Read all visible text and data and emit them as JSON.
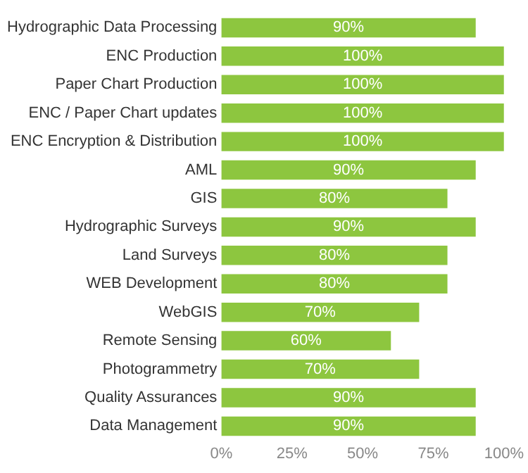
{
  "chart_data": {
    "type": "bar",
    "orientation": "horizontal",
    "categories": [
      "Hydrographic Data Processing",
      "ENC Production",
      "Paper Chart Production",
      "ENC / Paper Chart updates",
      "ENC Encryption & Distribution",
      "AML",
      "GIS",
      "Hydrographic Surveys",
      "Land Surveys",
      "WEB Development",
      "WebGIS",
      "Remote Sensing",
      "Photogrammetry",
      "Quality Assurances",
      "Data Management"
    ],
    "values": [
      90,
      100,
      100,
      100,
      100,
      90,
      80,
      90,
      80,
      80,
      70,
      60,
      70,
      90,
      90
    ],
    "value_labels": [
      "90%",
      "100%",
      "100%",
      "100%",
      "100%",
      "90%",
      "80%",
      "90%",
      "80%",
      "80%",
      "70%",
      "60%",
      "70%",
      "90%",
      "90%"
    ],
    "color": "#8dc63f",
    "xlim": [
      0,
      100
    ],
    "xticks": [
      {
        "value": 0,
        "label": "0%"
      },
      {
        "value": 25,
        "label": "25%"
      },
      {
        "value": 50,
        "label": "50%"
      },
      {
        "value": 75,
        "label": "75%"
      },
      {
        "value": 100,
        "label": "100%"
      }
    ],
    "grid": false,
    "legend": false
  }
}
